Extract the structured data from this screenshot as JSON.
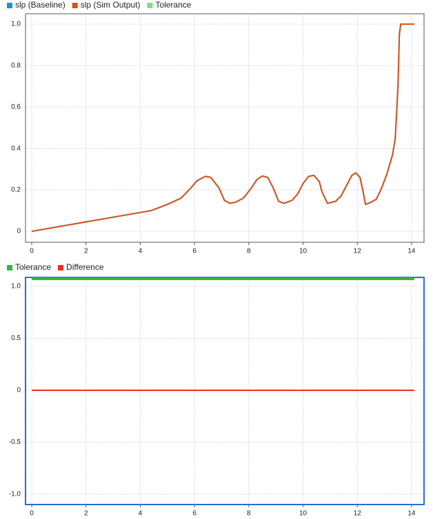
{
  "chart_data": [
    {
      "type": "line",
      "x": [
        0,
        4.4,
        5.0,
        5.5,
        5.8,
        6.1,
        6.4,
        6.6,
        6.9,
        7.1,
        7.3,
        7.5,
        7.8,
        8.1,
        8.3,
        8.5,
        8.7,
        8.9,
        9.1,
        9.3,
        9.6,
        9.8,
        10.0,
        10.2,
        10.4,
        10.6,
        10.7,
        10.9,
        11.2,
        11.4,
        11.6,
        11.8,
        11.95,
        12.1,
        12.2,
        12.3,
        12.5,
        12.7,
        12.9,
        13.1,
        13.3,
        13.4,
        13.5,
        13.55,
        13.6,
        14.1
      ],
      "series": [
        {
          "name": "slp (Baseline)",
          "color": "#1a8fe3",
          "values": [
            0,
            0.1,
            0.13,
            0.16,
            0.2,
            0.245,
            0.265,
            0.26,
            0.21,
            0.15,
            0.135,
            0.14,
            0.16,
            0.21,
            0.25,
            0.267,
            0.26,
            0.21,
            0.145,
            0.135,
            0.15,
            0.18,
            0.23,
            0.265,
            0.27,
            0.24,
            0.19,
            0.135,
            0.145,
            0.17,
            0.22,
            0.27,
            0.282,
            0.26,
            0.2,
            0.13,
            0.14,
            0.155,
            0.21,
            0.28,
            0.37,
            0.45,
            0.7,
            0.95,
            1.0,
            1.0
          ]
        },
        {
          "name": "slp (Sim Output)",
          "color": "#d95319",
          "values": [
            0,
            0.1,
            0.13,
            0.16,
            0.2,
            0.245,
            0.265,
            0.26,
            0.21,
            0.15,
            0.135,
            0.14,
            0.16,
            0.21,
            0.25,
            0.267,
            0.26,
            0.21,
            0.145,
            0.135,
            0.15,
            0.18,
            0.23,
            0.265,
            0.27,
            0.24,
            0.19,
            0.135,
            0.145,
            0.17,
            0.22,
            0.27,
            0.282,
            0.26,
            0.2,
            0.13,
            0.14,
            0.155,
            0.21,
            0.28,
            0.37,
            0.45,
            0.7,
            0.95,
            1.0,
            1.0
          ]
        }
      ],
      "legend_only": [
        {
          "name": "Tolerance",
          "color": "#80dc80"
        }
      ],
      "xlim": [
        -0.23,
        14.46
      ],
      "xticks": [
        0,
        2,
        4,
        6,
        8,
        10,
        12,
        14
      ],
      "ylim": [
        -0.053,
        1.05
      ],
      "yticks": [
        0,
        0.2,
        0.4,
        0.6,
        0.8,
        {
          "value": 1.0,
          "label": "1.0"
        }
      ],
      "grid": true
    },
    {
      "type": "line",
      "x": [
        0,
        14.1
      ],
      "series": [
        {
          "name": "Tolerance",
          "color": "#3cb43c",
          "values": [
            1.073,
            1.073
          ]
        },
        {
          "name": "Difference",
          "color": "#e8301a",
          "values": [
            0,
            0
          ]
        }
      ],
      "xlim": [
        -0.23,
        14.46
      ],
      "xticks": [
        0,
        2,
        4,
        6,
        8,
        10,
        12,
        14
      ],
      "ylim": [
        -1.1,
        1.086
      ],
      "yticks": [
        {
          "value": -1.0,
          "label": "-1.0"
        },
        -0.5,
        0,
        0.5,
        {
          "value": 1.0,
          "label": "1.0"
        }
      ],
      "grid": true
    }
  ]
}
